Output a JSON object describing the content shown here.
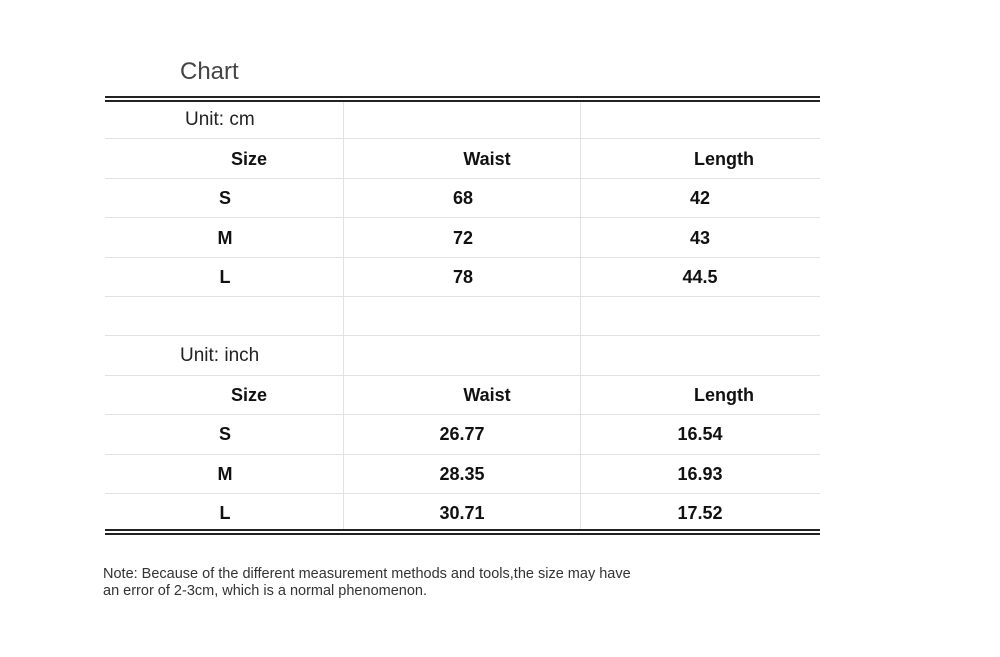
{
  "title": "Chart",
  "tables": [
    {
      "unit_label": "Unit: cm",
      "headers": [
        "Size",
        "Waist",
        "Length"
      ],
      "rows": [
        [
          "S",
          "68",
          "42"
        ],
        [
          "M",
          "72",
          "43"
        ],
        [
          "L",
          "78",
          "44.5"
        ]
      ]
    },
    {
      "unit_label": "Unit: inch",
      "headers": [
        "Size",
        "Waist",
        "Length"
      ],
      "rows": [
        [
          "S",
          "26.77",
          "16.54"
        ],
        [
          "M",
          "28.35",
          "16.93"
        ],
        [
          "L",
          "30.71",
          "17.52"
        ]
      ]
    }
  ],
  "note_lines": [
    "Note: Because of the different measurement methods and tools,the size may have",
    "an error of 2-3cm, which is a normal phenomenon."
  ]
}
